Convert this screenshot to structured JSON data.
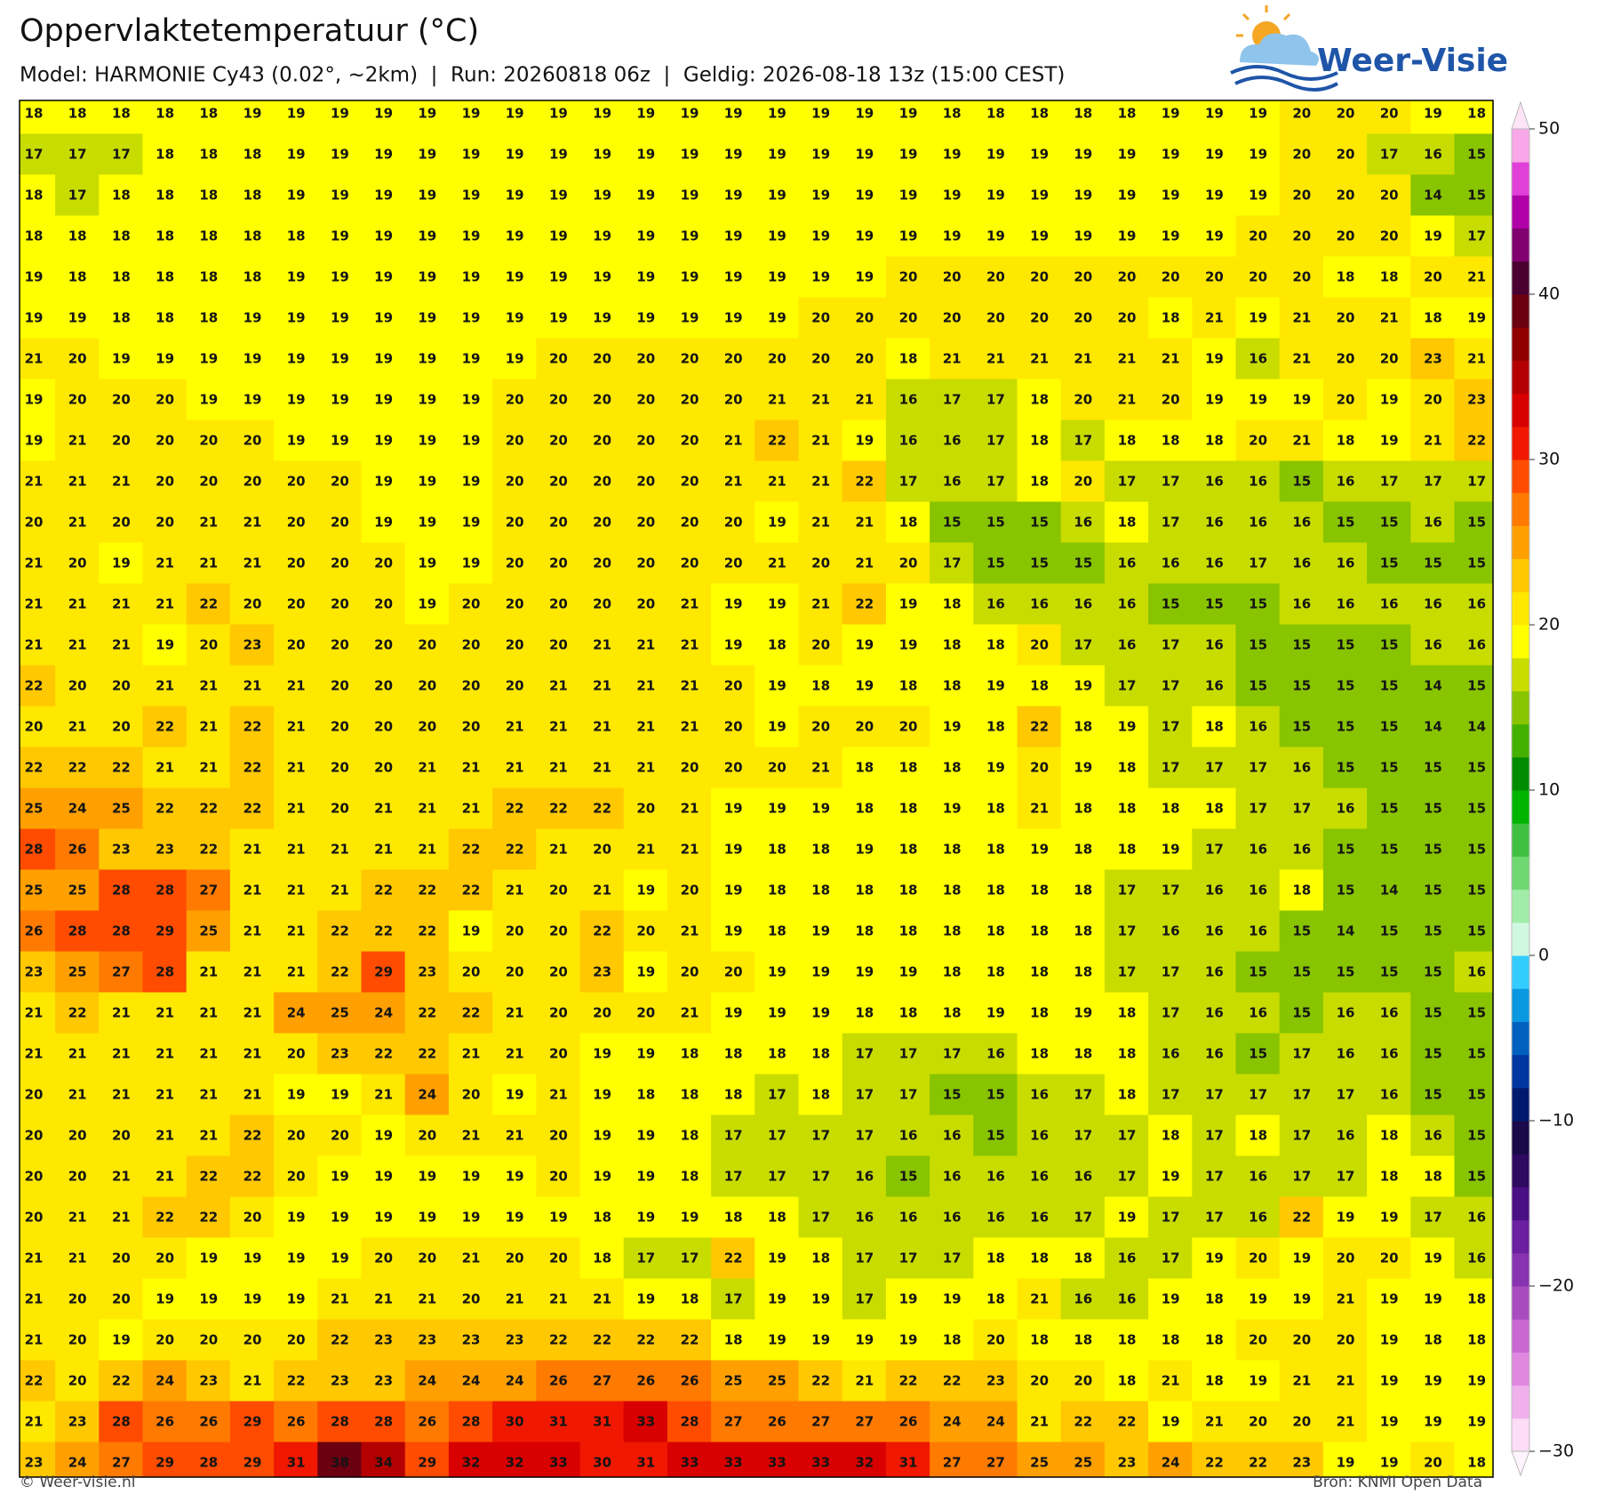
{
  "header": {
    "title": "Oppervlaktetemperatuur (°C)",
    "subtitle": "Model: HARMONIE Cy43 (0.02°, ~2km)  |  Run: 20260818 06z  |  Geldig: 2026-08-18 13z (15:00 CEST)",
    "logo": "Weer-Visie"
  },
  "map": {
    "type": "grid",
    "rows": [
      [
        18,
        18,
        18,
        18,
        18,
        19,
        19,
        19,
        19,
        19,
        19,
        19,
        19,
        19,
        19,
        19,
        19,
        19,
        19,
        19,
        19,
        18,
        18,
        18,
        18,
        18,
        19,
        19,
        19,
        20,
        20,
        20,
        19,
        18
      ],
      [
        17,
        17,
        17,
        18,
        18,
        18,
        19,
        19,
        19,
        19,
        19,
        19,
        19,
        19,
        19,
        19,
        19,
        19,
        19,
        19,
        19,
        19,
        19,
        19,
        19,
        19,
        19,
        19,
        19,
        20,
        20,
        17,
        16,
        15
      ],
      [
        18,
        17,
        18,
        18,
        18,
        18,
        19,
        19,
        19,
        19,
        19,
        19,
        19,
        19,
        19,
        19,
        19,
        19,
        19,
        19,
        19,
        19,
        19,
        19,
        19,
        19,
        19,
        19,
        19,
        20,
        20,
        20,
        14,
        15
      ],
      [
        18,
        18,
        18,
        18,
        18,
        18,
        18,
        19,
        19,
        19,
        19,
        19,
        19,
        19,
        19,
        19,
        19,
        19,
        19,
        19,
        19,
        19,
        19,
        19,
        19,
        19,
        19,
        19,
        20,
        20,
        20,
        20,
        19,
        17
      ],
      [
        19,
        18,
        18,
        18,
        18,
        18,
        19,
        19,
        19,
        19,
        19,
        19,
        19,
        19,
        19,
        19,
        19,
        19,
        19,
        19,
        20,
        20,
        20,
        20,
        20,
        20,
        20,
        20,
        20,
        20,
        18,
        18,
        20,
        21
      ],
      [
        19,
        19,
        18,
        18,
        18,
        19,
        19,
        19,
        19,
        19,
        19,
        19,
        19,
        19,
        19,
        19,
        19,
        19,
        20,
        20,
        20,
        20,
        20,
        20,
        20,
        20,
        18,
        21,
        19,
        21,
        20,
        21,
        18,
        19
      ],
      [
        21,
        20,
        19,
        19,
        19,
        19,
        19,
        19,
        19,
        19,
        19,
        19,
        20,
        20,
        20,
        20,
        20,
        20,
        20,
        20,
        18,
        21,
        21,
        21,
        21,
        21,
        21,
        19,
        16,
        21,
        20,
        20,
        23,
        21
      ],
      [
        19,
        20,
        20,
        20,
        19,
        19,
        19,
        19,
        19,
        19,
        19,
        20,
        20,
        20,
        20,
        20,
        20,
        21,
        21,
        21,
        16,
        17,
        17,
        18,
        20,
        21,
        20,
        19,
        19,
        19,
        20,
        19,
        20,
        23
      ],
      [
        19,
        21,
        20,
        20,
        20,
        20,
        19,
        19,
        19,
        19,
        19,
        20,
        20,
        20,
        20,
        20,
        21,
        22,
        21,
        19,
        16,
        16,
        17,
        18,
        17,
        18,
        18,
        18,
        20,
        21,
        18,
        19,
        21,
        22
      ],
      [
        21,
        21,
        21,
        20,
        20,
        20,
        20,
        20,
        19,
        19,
        19,
        20,
        20,
        20,
        20,
        20,
        21,
        21,
        21,
        22,
        17,
        16,
        17,
        18,
        20,
        17,
        17,
        16,
        16,
        15,
        16,
        17,
        17,
        17
      ],
      [
        20,
        21,
        20,
        20,
        21,
        21,
        20,
        20,
        19,
        19,
        19,
        20,
        20,
        20,
        20,
        20,
        20,
        19,
        21,
        21,
        18,
        15,
        15,
        15,
        16,
        18,
        17,
        16,
        16,
        16,
        15,
        15,
        16,
        15
      ],
      [
        21,
        20,
        19,
        21,
        21,
        21,
        20,
        20,
        20,
        19,
        19,
        20,
        20,
        20,
        20,
        20,
        20,
        21,
        20,
        21,
        20,
        17,
        15,
        15,
        15,
        16,
        16,
        16,
        17,
        16,
        16,
        15,
        15,
        15
      ],
      [
        21,
        21,
        21,
        21,
        22,
        20,
        20,
        20,
        20,
        19,
        20,
        20,
        20,
        20,
        20,
        21,
        19,
        19,
        21,
        22,
        19,
        18,
        16,
        16,
        16,
        16,
        15,
        15,
        15,
        16,
        16,
        16,
        16,
        16
      ],
      [
        21,
        21,
        21,
        19,
        20,
        23,
        20,
        20,
        20,
        20,
        20,
        20,
        20,
        21,
        21,
        21,
        19,
        18,
        20,
        19,
        19,
        18,
        18,
        20,
        17,
        16,
        17,
        16,
        15,
        15,
        15,
        15,
        16,
        16
      ],
      [
        22,
        20,
        20,
        21,
        21,
        21,
        21,
        20,
        20,
        20,
        20,
        20,
        21,
        21,
        21,
        21,
        20,
        19,
        18,
        19,
        18,
        18,
        19,
        18,
        19,
        17,
        17,
        16,
        15,
        15,
        15,
        15,
        14,
        15
      ],
      [
        20,
        21,
        20,
        22,
        21,
        22,
        21,
        20,
        20,
        20,
        20,
        21,
        21,
        21,
        21,
        21,
        20,
        19,
        20,
        20,
        20,
        19,
        18,
        22,
        18,
        19,
        17,
        18,
        16,
        15,
        15,
        15,
        14,
        14
      ],
      [
        22,
        22,
        22,
        21,
        21,
        22,
        21,
        20,
        20,
        21,
        21,
        21,
        21,
        21,
        21,
        20,
        20,
        20,
        21,
        18,
        18,
        18,
        19,
        20,
        19,
        18,
        17,
        17,
        17,
        16,
        15,
        15,
        15,
        15
      ],
      [
        25,
        24,
        25,
        22,
        22,
        22,
        21,
        20,
        21,
        21,
        21,
        22,
        22,
        22,
        20,
        21,
        19,
        19,
        19,
        18,
        18,
        19,
        18,
        21,
        18,
        18,
        18,
        18,
        17,
        17,
        16,
        15,
        15,
        15
      ],
      [
        28,
        26,
        23,
        23,
        22,
        21,
        21,
        21,
        21,
        21,
        22,
        22,
        21,
        20,
        21,
        21,
        19,
        18,
        18,
        19,
        18,
        18,
        18,
        19,
        18,
        18,
        19,
        17,
        16,
        16,
        15,
        15,
        15,
        15
      ],
      [
        25,
        25,
        28,
        28,
        27,
        21,
        21,
        21,
        22,
        22,
        22,
        21,
        20,
        21,
        19,
        20,
        19,
        18,
        18,
        18,
        18,
        18,
        18,
        18,
        18,
        17,
        17,
        16,
        16,
        18,
        15,
        14,
        15,
        15
      ],
      [
        26,
        28,
        28,
        29,
        25,
        21,
        21,
        22,
        22,
        22,
        19,
        20,
        20,
        22,
        20,
        21,
        19,
        18,
        19,
        18,
        18,
        18,
        18,
        18,
        18,
        17,
        16,
        16,
        16,
        15,
        14,
        15,
        15,
        15
      ],
      [
        23,
        25,
        27,
        28,
        21,
        21,
        21,
        22,
        29,
        23,
        20,
        20,
        20,
        23,
        19,
        20,
        20,
        19,
        19,
        19,
        19,
        18,
        18,
        18,
        18,
        17,
        17,
        16,
        15,
        15,
        15,
        15,
        15,
        16
      ],
      [
        21,
        22,
        21,
        21,
        21,
        21,
        24,
        25,
        24,
        22,
        22,
        21,
        20,
        20,
        20,
        21,
        19,
        19,
        19,
        18,
        18,
        18,
        19,
        18,
        19,
        18,
        17,
        16,
        16,
        15,
        16,
        16,
        15,
        15
      ],
      [
        21,
        21,
        21,
        21,
        21,
        21,
        20,
        23,
        22,
        22,
        21,
        21,
        20,
        19,
        19,
        18,
        18,
        18,
        18,
        17,
        17,
        17,
        16,
        18,
        18,
        18,
        16,
        16,
        15,
        17,
        16,
        16,
        15,
        15
      ],
      [
        20,
        21,
        21,
        21,
        21,
        21,
        19,
        19,
        21,
        24,
        20,
        19,
        21,
        19,
        18,
        18,
        18,
        17,
        18,
        17,
        17,
        15,
        15,
        16,
        17,
        18,
        17,
        17,
        17,
        17,
        17,
        16,
        15,
        15
      ],
      [
        20,
        20,
        20,
        21,
        21,
        22,
        20,
        20,
        19,
        20,
        21,
        21,
        20,
        19,
        19,
        18,
        17,
        17,
        17,
        17,
        16,
        16,
        15,
        16,
        17,
        17,
        18,
        17,
        18,
        17,
        16,
        18,
        16,
        15
      ],
      [
        20,
        20,
        21,
        21,
        22,
        22,
        20,
        19,
        19,
        19,
        19,
        19,
        20,
        19,
        19,
        18,
        17,
        17,
        17,
        16,
        15,
        16,
        16,
        16,
        16,
        17,
        19,
        17,
        16,
        17,
        17,
        18,
        18,
        15
      ],
      [
        20,
        21,
        21,
        22,
        22,
        20,
        19,
        19,
        19,
        19,
        19,
        19,
        19,
        18,
        19,
        19,
        18,
        18,
        17,
        16,
        16,
        16,
        16,
        16,
        17,
        19,
        17,
        17,
        16,
        22,
        19,
        19,
        17,
        16
      ],
      [
        21,
        21,
        20,
        20,
        19,
        19,
        19,
        19,
        20,
        20,
        21,
        20,
        20,
        18,
        17,
        17,
        22,
        19,
        18,
        17,
        17,
        17,
        18,
        18,
        18,
        16,
        17,
        19,
        20,
        19,
        20,
        20,
        19,
        16
      ],
      [
        21,
        20,
        20,
        19,
        19,
        19,
        19,
        21,
        21,
        21,
        20,
        21,
        21,
        21,
        19,
        18,
        17,
        19,
        19,
        17,
        19,
        19,
        18,
        21,
        16,
        16,
        19,
        18,
        19,
        19,
        21,
        19,
        19,
        18
      ],
      [
        21,
        20,
        19,
        20,
        20,
        20,
        20,
        22,
        23,
        23,
        23,
        23,
        22,
        22,
        22,
        22,
        18,
        19,
        19,
        19,
        19,
        18,
        20,
        18,
        18,
        18,
        18,
        18,
        20,
        20,
        20,
        19,
        18,
        18
      ],
      [
        22,
        20,
        22,
        24,
        23,
        21,
        22,
        23,
        23,
        24,
        24,
        24,
        26,
        27,
        26,
        26,
        25,
        25,
        22,
        21,
        22,
        22,
        23,
        20,
        20,
        18,
        21,
        18,
        19,
        21,
        21,
        19,
        19,
        19
      ],
      [
        21,
        23,
        28,
        26,
        26,
        29,
        26,
        28,
        28,
        26,
        28,
        30,
        31,
        31,
        33,
        28,
        27,
        26,
        27,
        27,
        26,
        24,
        24,
        21,
        22,
        22,
        19,
        21,
        20,
        20,
        21,
        19,
        19,
        19
      ],
      [
        23,
        24,
        27,
        29,
        28,
        29,
        31,
        38,
        34,
        29,
        32,
        32,
        33,
        30,
        31,
        33,
        33,
        33,
        33,
        32,
        31,
        27,
        27,
        25,
        25,
        23,
        24,
        22,
        22,
        23,
        19,
        19,
        20,
        18
      ]
    ]
  },
  "colorbar": {
    "clim": [
      -30,
      50
    ],
    "colors": [
      "#fcdcf6",
      "#f0b0ec",
      "#e088e0",
      "#c868d0",
      "#a84cc0",
      "#8833b0",
      "#6a20a0",
      "#4b0f85",
      "#2e0a60",
      "#1a0a4a",
      "#001a70",
      "#0036a0",
      "#0060c0",
      "#0a98e0",
      "#33ccff",
      "#d0f8e0",
      "#a0eca8",
      "#70d870",
      "#40c040",
      "#00b400",
      "#008c00",
      "#44b000",
      "#88c400",
      "#c8dc00",
      "#ffff00",
      "#ffe800",
      "#ffc800",
      "#ffa000",
      "#ff7a00",
      "#ff4c00",
      "#f01800",
      "#d80000",
      "#b40000",
      "#900000",
      "#6a0010",
      "#4a0030",
      "#800070",
      "#b000a8",
      "#e040d8",
      "#f8a8e8"
    ],
    "extend_low": "#fdf4fd",
    "extend_high": "#fde4f6",
    "ticks": [
      50,
      40,
      30,
      20,
      10,
      0,
      {
        "value": -10,
        "label": "−10"
      },
      {
        "value": -20,
        "label": "−20"
      },
      {
        "value": -30,
        "label": "−30"
      }
    ]
  },
  "footer": {
    "left": "© Weer-visie.nl",
    "right": "Bron: KNMI Open Data"
  }
}
